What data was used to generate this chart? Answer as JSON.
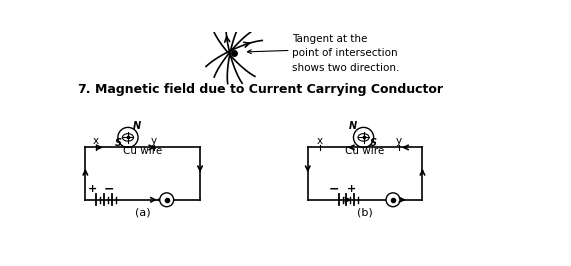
{
  "bg_color": "#ffffff",
  "title_num": "7.",
  "title_text": "Magnetic field due to Current Carrying Conductor",
  "tangent_note": "Tangent at the\npoint of intersection\nshows two direction.",
  "label_a": "(a)",
  "label_b": "(b)",
  "label_cu_wire": "Cu wire",
  "label_x": "x",
  "label_y": "y",
  "label_S_a": "S",
  "label_N_a": "N",
  "label_S_b": "S",
  "label_N_b": "N",
  "label_plus_a": "+",
  "label_minus_a": "−",
  "label_plus_b": "+",
  "label_minus_b": "−"
}
